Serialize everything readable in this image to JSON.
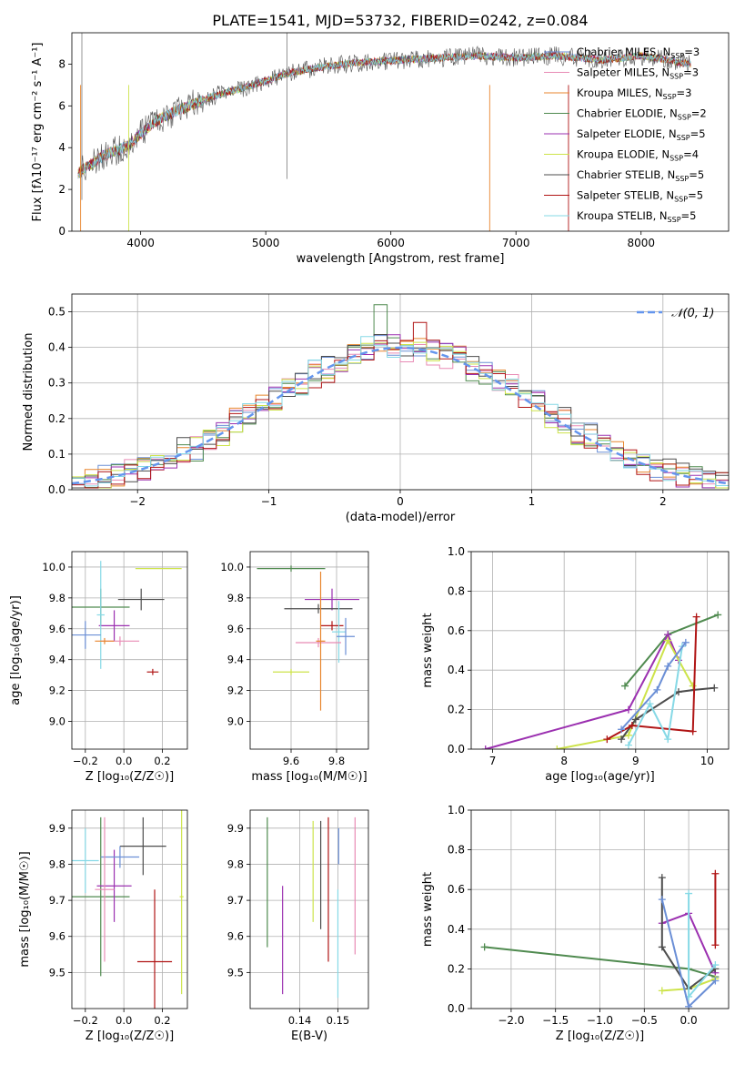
{
  "figure": {
    "title": "PLATE=1541, MJD=53732, FIBERID=0242, z=0.084"
  },
  "colors": {
    "MILES_Chabrier": "#6b8fd6",
    "MILES_Salpeter": "#e88bb5",
    "MILES_Kroupa": "#e8862e",
    "ELODIE_Chabrier": "#4f8a4f",
    "ELODIE_Salpeter": "#9b30b0",
    "ELODIE_Kroupa": "#cde34a",
    "STELIB_Chabrier": "#4d4d4d",
    "STELIB_Salpeter": "#b01515",
    "STELIB_Kroupa": "#86d9e6",
    "gaussian": "#6495ed"
  },
  "chart_data": [
    {
      "id": "spectrum",
      "type": "line",
      "title": "PLATE=1541, MJD=53732, FIBERID=0242, z=0.084",
      "xlabel": "wavelength [Angstrom, rest frame]",
      "ylabel": "Flux [fλ10⁻¹⁷ erg cm⁻² s⁻¹ A⁻¹]",
      "xlim": [
        3450,
        8700
      ],
      "ylim": [
        0,
        9.5
      ],
      "xticks": [
        "4000",
        "5000",
        "6000",
        "7000",
        "8000"
      ],
      "yticks": [
        "0",
        "2",
        "4",
        "6",
        "8"
      ],
      "legend_position": "right",
      "x": [
        3500,
        3700,
        3900,
        4100,
        4300,
        4600,
        4900,
        5200,
        5500,
        5800,
        6100,
        6400,
        6700,
        7000,
        7300,
        7700,
        8000,
        8400
      ],
      "series": [
        {
          "name": "Chabrier MILES, N_SSP=3",
          "values": [
            2.8,
            3.6,
            4.1,
            5.2,
            5.8,
            6.5,
            7.0,
            7.6,
            7.9,
            8.1,
            8.2,
            8.3,
            8.4,
            8.3,
            8.4,
            8.2,
            8.4,
            8.0
          ]
        },
        {
          "name": "Salpeter MILES, N_SSP=3",
          "values": [
            2.8,
            3.6,
            4.1,
            5.2,
            5.8,
            6.5,
            7.0,
            7.6,
            7.9,
            8.1,
            8.2,
            8.3,
            8.4,
            8.3,
            8.4,
            8.2,
            8.4,
            8.0
          ]
        },
        {
          "name": "Kroupa MILES, N_SSP=3",
          "values": [
            2.8,
            3.6,
            4.1,
            5.2,
            5.8,
            6.5,
            7.0,
            7.6,
            7.9,
            8.1,
            8.2,
            8.3,
            8.4,
            8.3,
            8.4,
            8.2,
            8.4,
            8.0
          ]
        },
        {
          "name": "Chabrier ELODIE, N_SSP=2",
          "values": [
            2.8,
            3.6,
            4.1,
            5.2,
            5.8,
            6.5,
            7.0,
            7.6,
            7.9,
            8.1,
            8.2,
            8.3,
            8.4,
            8.3,
            8.4,
            8.2,
            8.4,
            8.0
          ]
        },
        {
          "name": "Salpeter ELODIE, N_SSP=5",
          "values": [
            2.8,
            3.6,
            4.1,
            5.2,
            5.8,
            6.5,
            7.0,
            7.6,
            7.9,
            8.1,
            8.2,
            8.3,
            8.4,
            8.3,
            8.4,
            8.2,
            8.4,
            8.0
          ]
        },
        {
          "name": "Kroupa ELODIE, N_SSP=4",
          "values": [
            2.8,
            3.6,
            4.1,
            5.2,
            5.8,
            6.5,
            7.0,
            7.6,
            7.9,
            8.1,
            8.2,
            8.3,
            8.4,
            8.3,
            8.4,
            8.2,
            8.4,
            8.0
          ]
        },
        {
          "name": "Chabrier STELIB, N_SSP=5",
          "values": [
            2.8,
            3.6,
            4.1,
            5.2,
            5.8,
            6.5,
            7.0,
            7.6,
            7.9,
            8.1,
            8.2,
            8.3,
            8.4,
            8.3,
            8.4,
            8.2,
            8.4,
            8.0
          ]
        },
        {
          "name": "Salpeter STELIB, N_SSP=5",
          "values": [
            2.8,
            3.6,
            4.1,
            5.2,
            5.8,
            6.5,
            7.0,
            7.6,
            7.9,
            8.1,
            8.2,
            8.3,
            8.4,
            8.3,
            8.4,
            8.2,
            8.4,
            8.0
          ]
        },
        {
          "name": "Kroupa STELIB, N_SSP=5",
          "values": [
            2.8,
            3.6,
            4.1,
            5.2,
            5.8,
            6.5,
            7.0,
            7.6,
            7.9,
            8.1,
            8.2,
            8.3,
            8.4,
            8.3,
            8.4,
            8.2,
            8.4,
            8.0
          ]
        }
      ]
    },
    {
      "id": "residuals",
      "type": "bar",
      "xlabel": "(data-model)/error",
      "ylabel": "Normed distribution",
      "xlim": [
        -2.5,
        2.5
      ],
      "ylim": [
        0,
        0.55
      ],
      "xticks": [
        "−2",
        "−1",
        "0",
        "1",
        "2"
      ],
      "yticks": [
        "0.0",
        "0.1",
        "0.2",
        "0.3",
        "0.4",
        "0.5"
      ],
      "grid": true,
      "legend_position": "upper right",
      "legend": "𝒩(0, 1)",
      "bins": [
        -2.4,
        -2.2,
        -2.0,
        -1.8,
        -1.6,
        -1.4,
        -1.2,
        -1.0,
        -0.8,
        -0.6,
        -0.4,
        -0.2,
        0.0,
        0.2,
        0.4,
        0.6,
        0.8,
        1.0,
        1.2,
        1.4,
        1.6,
        1.8,
        2.0,
        2.2,
        2.4
      ],
      "series": [
        {
          "values": [
            0.03,
            0.05,
            0.07,
            0.1,
            0.13,
            0.17,
            0.22,
            0.27,
            0.31,
            0.35,
            0.38,
            0.42,
            0.41,
            0.4,
            0.39,
            0.34,
            0.3,
            0.25,
            0.2,
            0.16,
            0.12,
            0.08,
            0.06,
            0.04,
            0.02
          ]
        },
        {
          "values": [
            0.02,
            0.04,
            0.06,
            0.09,
            0.12,
            0.16,
            0.21,
            0.26,
            0.3,
            0.33,
            0.37,
            0.38,
            0.39,
            0.38,
            0.36,
            0.33,
            0.29,
            0.24,
            0.19,
            0.14,
            0.1,
            0.07,
            0.05,
            0.03,
            0.02
          ]
        }
      ],
      "gaussian_peak": 0.399
    },
    {
      "id": "age-vs-Z",
      "type": "scatter",
      "xlabel": "Z [log₁₀(Z/Z☉)]",
      "ylabel": "age  [log₁₀(age/yr)]",
      "xlim": [
        -0.27,
        0.33
      ],
      "ylim": [
        8.82,
        10.1
      ],
      "xticks": [
        "−0.2",
        "0.0",
        "0.2"
      ],
      "yticks": [
        "9.0",
        "9.2",
        "9.4",
        "9.6",
        "9.8",
        "10.0"
      ],
      "points": [
        {
          "x": -0.12,
          "y": 9.74,
          "xerr": 0.15,
          "yerr": 0.12
        },
        {
          "x": -0.05,
          "y": 9.62,
          "xerr": 0.08,
          "yerr": 0.1
        },
        {
          "x": 0.18,
          "y": 9.99,
          "xerr": 0.12,
          "yerr": 0.0
        },
        {
          "x": 0.09,
          "y": 9.79,
          "xerr": 0.12,
          "yerr": 0.07
        },
        {
          "x": 0.15,
          "y": 9.32,
          "xerr": 0.03,
          "yerr": 0.02
        },
        {
          "x": -0.12,
          "y": 9.69,
          "xerr": 0.02,
          "yerr": 0.35
        },
        {
          "x": -0.2,
          "y": 9.56,
          "xerr": 0.08,
          "yerr": 0.09
        },
        {
          "x": -0.02,
          "y": 9.52,
          "xerr": 0.1,
          "yerr": 0.03
        },
        {
          "x": -0.1,
          "y": 9.52,
          "xerr": 0.05,
          "yerr": 0.02
        }
      ]
    },
    {
      "id": "age-vs-mass",
      "type": "scatter",
      "xlabel": "mass [log₁₀(M/M☉)]",
      "ylabel": "",
      "xlim": [
        9.42,
        9.94
      ],
      "ylim": [
        8.82,
        10.1
      ],
      "xticks": [
        "9.6",
        "9.8"
      ],
      "yticks": [
        "9.0",
        "9.2",
        "9.4",
        "9.6",
        "9.8",
        "10.0"
      ],
      "points": [
        {
          "x": 9.6,
          "y": 9.99,
          "xerr": 0.15,
          "yerr": 0.02
        },
        {
          "x": 9.78,
          "y": 9.79,
          "xerr": 0.12,
          "yerr": 0.07
        },
        {
          "x": 9.6,
          "y": 9.32,
          "xerr": 0.08,
          "yerr": 0.02
        },
        {
          "x": 9.72,
          "y": 9.73,
          "xerr": 0.15,
          "yerr": 0.03
        },
        {
          "x": 9.78,
          "y": 9.62,
          "xerr": 0.05,
          "yerr": 0.03
        },
        {
          "x": 9.81,
          "y": 9.58,
          "xerr": 0.03,
          "yerr": 0.2
        },
        {
          "x": 9.84,
          "y": 9.55,
          "xerr": 0.04,
          "yerr": 0.12
        },
        {
          "x": 9.72,
          "y": 9.51,
          "xerr": 0.1,
          "yerr": 0.03
        },
        {
          "x": 9.73,
          "y": 9.52,
          "xerr": 0.02,
          "yerr": 0.45
        }
      ]
    },
    {
      "id": "weight-vs-age",
      "type": "line",
      "xlabel": "age  [log₁₀(age/yr)]",
      "ylabel": "mass weight",
      "xlim": [
        6.7,
        10.3
      ],
      "ylim": [
        0,
        1.0
      ],
      "xticks": [
        "7",
        "8",
        "9",
        "10"
      ],
      "yticks": [
        "0.0",
        "0.2",
        "0.4",
        "0.6",
        "0.8",
        "1.0"
      ],
      "grid": true,
      "series": [
        {
          "x": [
            8.85,
            9.45,
            10.15
          ],
          "y": [
            0.32,
            0.58,
            0.68
          ]
        },
        {
          "x": [
            6.9,
            8.9,
            9.45,
            9.6
          ],
          "y": [
            0.0,
            0.2,
            0.58,
            0.45
          ]
        },
        {
          "x": [
            7.9,
            8.9,
            9.45,
            9.8
          ],
          "y": [
            0.0,
            0.07,
            0.55,
            0.32
          ]
        },
        {
          "x": [
            8.8,
            9.0,
            9.6,
            9.82,
            10.1
          ],
          "y": [
            0.05,
            0.15,
            0.29,
            0.3,
            0.31
          ]
        },
        {
          "x": [
            8.6,
            8.95,
            9.8,
            9.85
          ],
          "y": [
            0.05,
            0.12,
            0.09,
            0.67
          ]
        },
        {
          "x": [
            8.9,
            9.2,
            9.45,
            9.65
          ],
          "y": [
            0.02,
            0.23,
            0.05,
            0.52
          ]
        },
        {
          "x": [
            8.8,
            9.3,
            9.45,
            9.7
          ],
          "y": [
            0.1,
            0.3,
            0.42,
            0.54
          ]
        }
      ]
    },
    {
      "id": "mass-vs-Z",
      "type": "scatter",
      "xlabel": "Z [log₁₀(Z/Z☉)]",
      "ylabel": "mass [log₁₀(M/M☉)]",
      "xlim": [
        -0.27,
        0.33
      ],
      "ylim": [
        9.4,
        9.95
      ],
      "xticks": [
        "−0.2",
        "0.0",
        "0.2"
      ],
      "yticks": [
        "9.5",
        "9.6",
        "9.7",
        "9.8",
        "9.9"
      ],
      "points": [
        {
          "x": -0.12,
          "y": 9.71,
          "xerr": 0.15,
          "yerr": 0.22
        },
        {
          "x": -0.05,
          "y": 9.74,
          "xerr": 0.09,
          "yerr": 0.1
        },
        {
          "x": 0.3,
          "y": 9.71,
          "xerr": 0.01,
          "yerr": 0.27
        },
        {
          "x": 0.1,
          "y": 9.85,
          "xerr": 0.12,
          "yerr": 0.08
        },
        {
          "x": 0.16,
          "y": 9.53,
          "xerr": 0.09,
          "yerr": 0.2
        },
        {
          "x": -0.2,
          "y": 9.81,
          "xerr": 0.07,
          "yerr": 0.09
        },
        {
          "x": -0.02,
          "y": 9.82,
          "xerr": 0.1,
          "yerr": 0.03
        },
        {
          "x": -0.1,
          "y": 9.73,
          "xerr": 0.05,
          "yerr": 0.2
        }
      ]
    },
    {
      "id": "mass-vs-ebv",
      "type": "scatter",
      "xlabel": "E(B-V)",
      "ylabel": "",
      "xlim": [
        0.127,
        0.158
      ],
      "ylim": [
        9.4,
        9.95
      ],
      "xticks": [
        "0.14",
        "0.15"
      ],
      "yticks": [
        "9.5",
        "9.6",
        "9.7",
        "9.8",
        "9.9"
      ],
      "points": [
        {
          "x": 0.1315,
          "y": 9.75,
          "yerr": 0.18
        },
        {
          "x": 0.1355,
          "y": 9.59,
          "yerr": 0.15
        },
        {
          "x": 0.1435,
          "y": 9.78,
          "yerr": 0.14
        },
        {
          "x": 0.1455,
          "y": 9.77,
          "yerr": 0.15
        },
        {
          "x": 0.1475,
          "y": 9.73,
          "yerr": 0.2
        },
        {
          "x": 0.15,
          "y": 9.58,
          "yerr": 0.15
        },
        {
          "x": 0.1502,
          "y": 9.85,
          "yerr": 0.05
        },
        {
          "x": 0.1545,
          "y": 9.74,
          "yerr": 0.19
        }
      ]
    },
    {
      "id": "weight-vs-Z",
      "type": "line",
      "xlabel": "Z [log₁₀(Z/Z☉)]",
      "ylabel": "mass weight",
      "xlim": [
        -2.45,
        0.45
      ],
      "ylim": [
        0,
        1.0
      ],
      "xticks": [
        "−2.0",
        "−1.5",
        "−1.0",
        "−0.5",
        "0.0"
      ],
      "yticks": [
        "0.0",
        "0.2",
        "0.4",
        "0.6",
        "0.8",
        "1.0"
      ],
      "grid": true,
      "series": [
        {
          "x": [
            -2.3,
            0.0,
            0.3
          ],
          "y": [
            0.31,
            0.2,
            0.16
          ]
        },
        {
          "x": [
            -0.3,
            0.0,
            0.3
          ],
          "y": [
            0.43,
            0.48,
            0.18
          ]
        },
        {
          "x": [
            -0.3,
            0.0,
            0.3
          ],
          "y": [
            0.09,
            0.1,
            0.15
          ]
        },
        {
          "x": [
            -0.3,
            -0.3,
            0.0,
            0.3
          ],
          "y": [
            0.66,
            0.31,
            0.1,
            0.2
          ]
        },
        {
          "x": [
            0.3,
            0.3
          ],
          "y": [
            0.68,
            0.32
          ]
        },
        {
          "x": [
            0.0,
            0.0,
            0.3
          ],
          "y": [
            0.58,
            0.06,
            0.22
          ]
        },
        {
          "x": [
            -0.3,
            0.0,
            0.3
          ],
          "y": [
            0.55,
            0.01,
            0.14
          ]
        }
      ]
    }
  ]
}
